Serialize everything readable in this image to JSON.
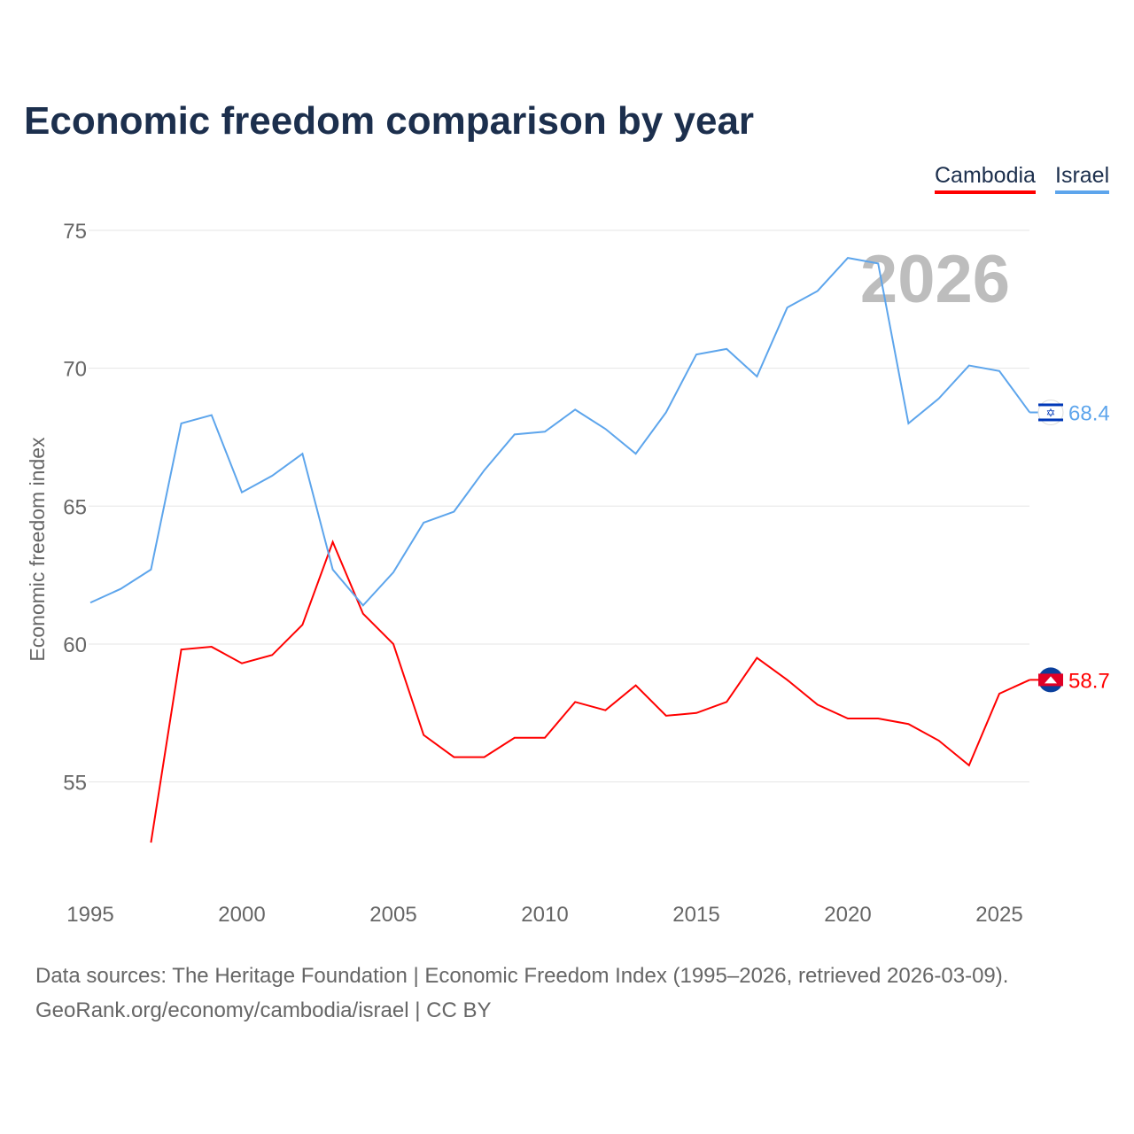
{
  "title": "Economic freedom comparison by year",
  "legend": [
    "Cambodia",
    "Israel"
  ],
  "year_watermark": "2026",
  "sources": {
    "line1": "Data sources: The Heritage Foundation | Economic Freedom Index (1995–2026, retrieved 2026-03-09).",
    "line2": "GeoRank.org/economy/cambodia/israel | CC BY"
  },
  "chart_data": {
    "type": "line",
    "title": "Economic freedom comparison by year",
    "xlabel": "",
    "ylabel": "Economic freedom index",
    "xlim": [
      1995,
      2026
    ],
    "ylim": [
      51,
      75
    ],
    "xticks": [
      1995,
      2000,
      2005,
      2010,
      2015,
      2020,
      2025
    ],
    "yticks": [
      55,
      60,
      65,
      70,
      75
    ],
    "grid": true,
    "legend_position": "top-right",
    "series": [
      {
        "name": "Cambodia",
        "color": "#ff0000",
        "end_label": "58.7",
        "x": [
          1997,
          1998,
          1999,
          2000,
          2001,
          2002,
          2003,
          2004,
          2005,
          2006,
          2007,
          2008,
          2009,
          2010,
          2011,
          2012,
          2013,
          2014,
          2015,
          2016,
          2017,
          2018,
          2019,
          2020,
          2021,
          2022,
          2023,
          2024,
          2025,
          2026
        ],
        "values": [
          52.8,
          59.8,
          59.9,
          59.3,
          59.6,
          60.7,
          63.7,
          61.1,
          60.0,
          56.7,
          55.9,
          55.9,
          56.6,
          56.6,
          57.9,
          57.6,
          58.5,
          57.4,
          57.5,
          57.9,
          59.5,
          58.7,
          57.8,
          57.3,
          57.3,
          57.1,
          56.5,
          55.6,
          58.2,
          58.7
        ]
      },
      {
        "name": "Israel",
        "color": "#5da5ec",
        "end_label": "68.4",
        "x": [
          1995,
          1996,
          1997,
          1998,
          1999,
          2000,
          2001,
          2002,
          2003,
          2004,
          2005,
          2006,
          2007,
          2008,
          2009,
          2010,
          2011,
          2012,
          2013,
          2014,
          2015,
          2016,
          2017,
          2018,
          2019,
          2020,
          2021,
          2022,
          2023,
          2024,
          2025,
          2026
        ],
        "values": [
          61.5,
          62.0,
          62.7,
          68.0,
          68.3,
          65.5,
          66.1,
          66.9,
          62.7,
          61.4,
          62.6,
          64.4,
          64.8,
          66.3,
          67.6,
          67.7,
          68.5,
          67.8,
          66.9,
          68.4,
          70.5,
          70.7,
          69.7,
          72.2,
          72.8,
          74.0,
          73.8,
          68.0,
          68.9,
          70.1,
          69.9,
          68.4
        ]
      }
    ]
  }
}
